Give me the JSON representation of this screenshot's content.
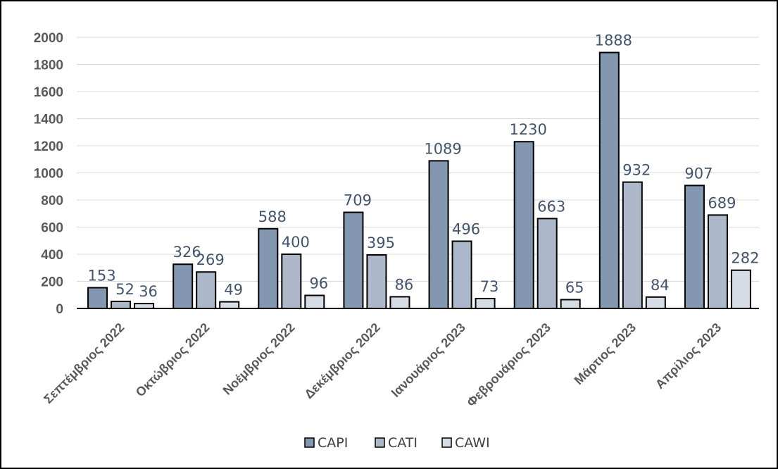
{
  "chart_data": {
    "type": "bar",
    "title": "",
    "xlabel": "",
    "ylabel": "",
    "ylim": [
      0,
      2000
    ],
    "yticks": [
      0,
      200,
      400,
      600,
      800,
      1000,
      1200,
      1400,
      1600,
      1800,
      2000
    ],
    "grid": true,
    "legend_position": "bottom",
    "categories": [
      "Σεπτέμβριος 2022",
      "Οκτώβριος 2022",
      "Νοέμβριος 2022",
      "Δεκέμβριος 2022",
      "Ιανουάριος 2023",
      "Φεβρουάριος 2023",
      "Μάρτιος 2023",
      "Απρίλιος 2023"
    ],
    "series": [
      {
        "name": "CAPI",
        "color": "#8497b0",
        "values": [
          153,
          326,
          588,
          709,
          1089,
          1230,
          1888,
          907
        ]
      },
      {
        "name": "CATI",
        "color": "#adb9ca",
        "values": [
          52,
          269,
          400,
          395,
          496,
          663,
          932,
          689
        ]
      },
      {
        "name": "CAWI",
        "color": "#d6dce5",
        "values": [
          36,
          49,
          96,
          86,
          73,
          65,
          84,
          282
        ]
      }
    ]
  }
}
